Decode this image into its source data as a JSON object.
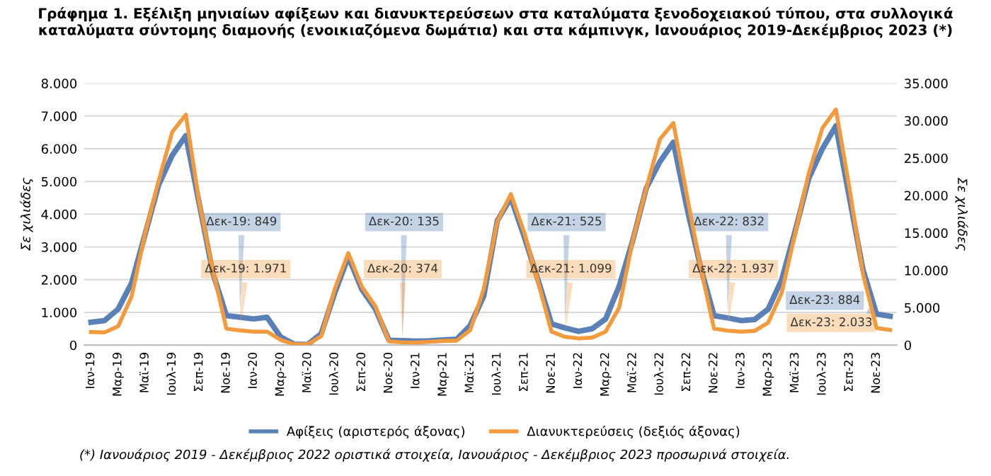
{
  "chart_data": {
    "type": "line",
    "title": "Γράφημα 1. Εξέλιξη μηνιαίων αφίξεων και διανυκτερεύσεων στα καταλύματα ξενοδοχειακού τύπου, στα συλλογικά καταλύματα σύντομης διαμονής (ενοικιαζόμενα δωμάτια) και στα κάμπινγκ, Ιανουάριος 2019-Δεκέμβριος 2023 (*)",
    "ylabel": "Σε χιλιάδες",
    "y2label": "Σε χιλιάδες",
    "categories": [
      "Ιαν-19",
      null,
      "Μαρ-19",
      null,
      "Μαϊ-19",
      null,
      "Ιουλ-19",
      null,
      "Σεπ-19",
      null,
      "Νοε-19",
      null,
      "Ιαν-20",
      null,
      "Μαρ-20",
      null,
      "Μαϊ-20",
      null,
      "Ιουλ-20",
      null,
      "Σεπ-20",
      null,
      "Νοε-20",
      null,
      "Ιαν-21",
      null,
      "Μαρ-21",
      null,
      "Μαϊ-21",
      null,
      "Ιουλ-21",
      null,
      "Σεπ-21",
      null,
      "Νοε-21",
      null,
      "Ιαν-22",
      null,
      "Μαρ-22",
      null,
      "Μαϊ-22",
      null,
      "Ιουλ-22",
      null,
      "Σεπ-22",
      null,
      "Νοε-22",
      null,
      "Ιαν-23",
      null,
      "Μαρ-23",
      null,
      "Μαϊ-23",
      null,
      "Ιουλ-23",
      null,
      "Σεπ-23",
      null,
      "Νοε-23",
      null
    ],
    "series": [
      {
        "name": "Αφίξεις (αριστερός άξονας)",
        "color": "#5a80b8",
        "values": [
          700,
          750,
          1100,
          1900,
          3400,
          4900,
          5800,
          6400,
          4300,
          2200,
          900,
          849,
          800,
          850,
          250,
          30,
          20,
          350,
          1600,
          2700,
          1700,
          1100,
          150,
          135,
          120,
          130,
          160,
          180,
          600,
          1500,
          3800,
          4500,
          3300,
          2000,
          650,
          525,
          420,
          500,
          800,
          1800,
          3200,
          4800,
          5600,
          6200,
          4200,
          2400,
          900,
          832,
          750,
          780,
          1100,
          2000,
          3500,
          5100,
          6000,
          6700,
          4500,
          2300,
          950,
          884
        ]
      },
      {
        "name": "Διανυκτερεύσεις (δεξιός άξονας)",
        "color": "#f39a3c",
        "axis": "y2",
        "values": [
          1750,
          1700,
          2500,
          6500,
          15000,
          22000,
          28500,
          30800,
          19000,
          10000,
          2200,
          1971,
          1800,
          1800,
          700,
          100,
          100,
          1200,
          7500,
          12300,
          7800,
          5200,
          500,
          374,
          350,
          450,
          550,
          600,
          2000,
          7500,
          16500,
          20200,
          15000,
          8500,
          1800,
          1099,
          900,
          1000,
          1800,
          5000,
          14000,
          21000,
          27500,
          29700,
          20000,
          10500,
          2200,
          1937,
          1800,
          1900,
          3000,
          7000,
          15000,
          23000,
          29000,
          31500,
          21000,
          9500,
          2300,
          2033
        ]
      }
    ],
    "ylim": [
      0,
      8000
    ],
    "yticks": [
      {
        "value": 0,
        "label": "0"
      },
      {
        "value": 1000,
        "label": "1.000"
      },
      {
        "value": 2000,
        "label": "2.000"
      },
      {
        "value": 3000,
        "label": "3.000"
      },
      {
        "value": 4000,
        "label": "4.000"
      },
      {
        "value": 5000,
        "label": "5.000"
      },
      {
        "value": 6000,
        "label": "6.000"
      },
      {
        "value": 7000,
        "label": "7.000"
      },
      {
        "value": 8000,
        "label": "8.000"
      }
    ],
    "y2lim": [
      0,
      35000
    ],
    "y2ticks": [
      {
        "value": 0,
        "label": "0"
      },
      {
        "value": 5000,
        "label": "5.000"
      },
      {
        "value": 10000,
        "label": "10.000"
      },
      {
        "value": 15000,
        "label": "15.000"
      },
      {
        "value": 20000,
        "label": "20.000"
      },
      {
        "value": 25000,
        "label": "25.000"
      },
      {
        "value": 30000,
        "label": "30.000"
      },
      {
        "value": 35000,
        "label": "35.000"
      }
    ],
    "grid": "y",
    "legend": "bottom",
    "annotations": [
      "Δεκ-19: 849",
      "Δεκ-19: 1.971",
      "Δεκ-20: 135",
      "Δεκ-20: 374",
      "Δεκ-21: 525",
      "Δεκ-21: 1.099",
      "Δεκ-22: 832",
      "Δεκ-22: 1.937",
      "Δεκ-23: 884",
      "Δεκ-23: 2.033",
      "(*) Ιανουάριος 2019 - Δεκέμβριος 2022 οριστικά στοιχεία, Ιανουάριος - Δεκέμβριος 2023 προσωρινά στοιχεία."
    ]
  }
}
